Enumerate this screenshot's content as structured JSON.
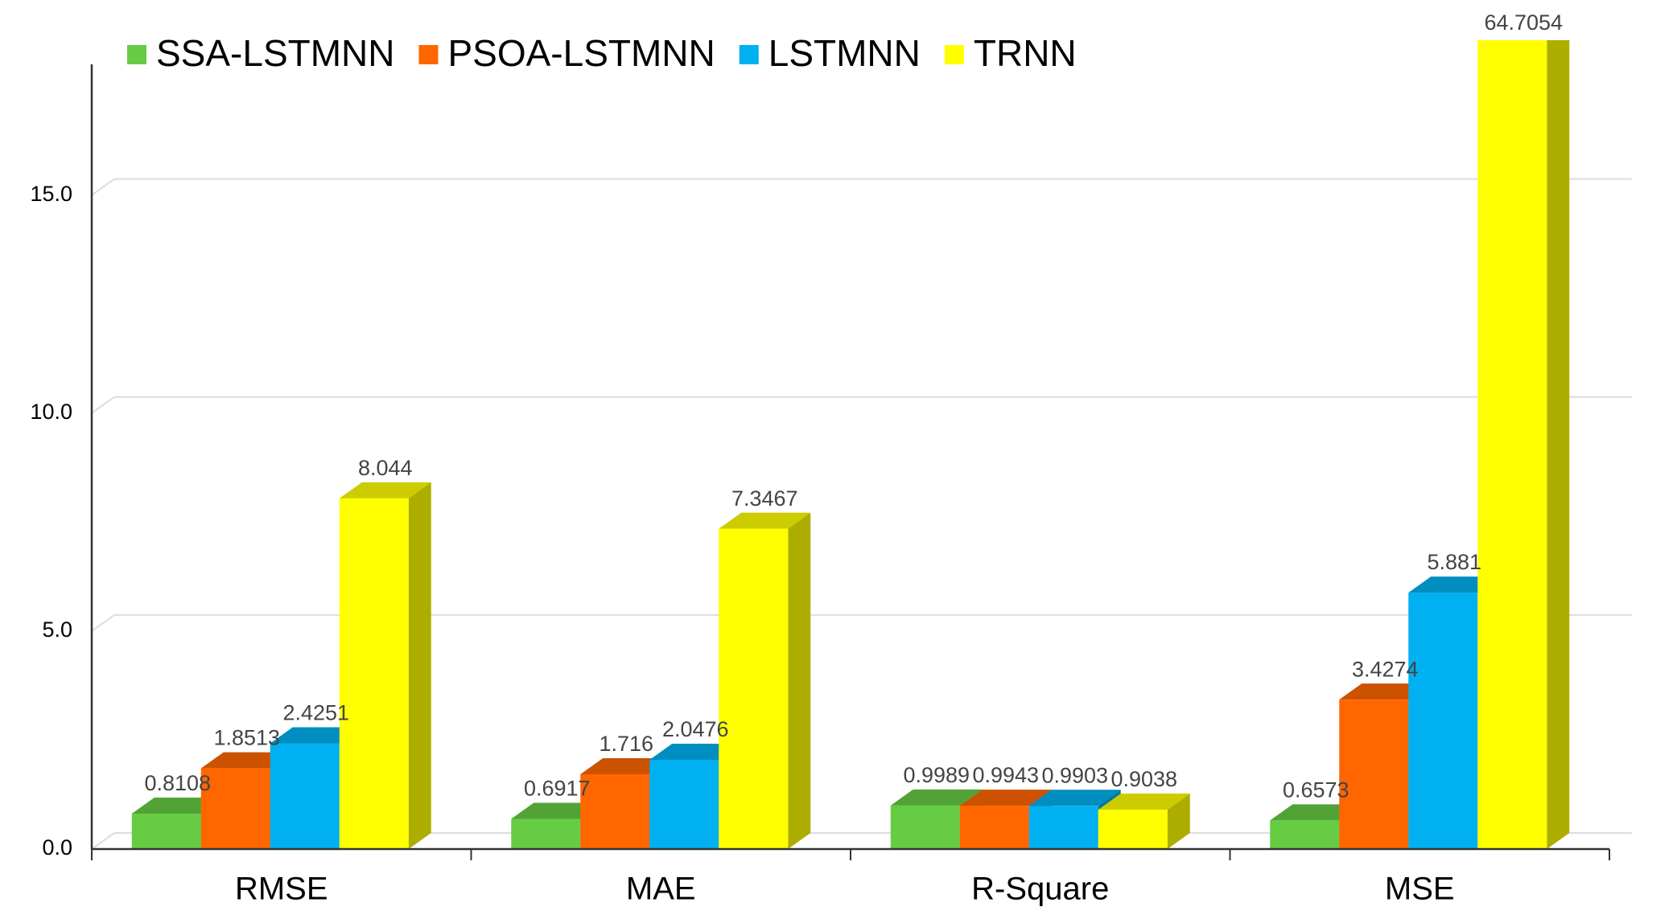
{
  "chart_data": {
    "type": "bar3d",
    "categories": [
      "RMSE",
      "MAE",
      "R-Square",
      "MSE"
    ],
    "series": [
      {
        "name": "SSA-LSTMNN",
        "color": "#66cc44",
        "values": [
          0.8108,
          0.6917,
          0.9989,
          0.6573
        ]
      },
      {
        "name": "PSOA-LSTMNN",
        "color": "#ff6600",
        "values": [
          1.8513,
          1.716,
          0.9943,
          3.4274
        ]
      },
      {
        "name": "LSTMNN",
        "color": "#00b0f0",
        "values": [
          2.4251,
          2.0476,
          0.9903,
          5.881
        ]
      },
      {
        "name": "TRNN",
        "color": "#ffff00",
        "values": [
          8.044,
          7.3467,
          0.9038,
          64.7054
        ]
      }
    ],
    "ylim": [
      0,
      18
    ],
    "yticks": [
      {
        "value": 0,
        "label": "0.0"
      },
      {
        "value": 5,
        "label": "5.0"
      },
      {
        "value": 10,
        "label": "10.0"
      },
      {
        "value": 15,
        "label": "15.0"
      }
    ],
    "grid": true,
    "legend": "top"
  }
}
